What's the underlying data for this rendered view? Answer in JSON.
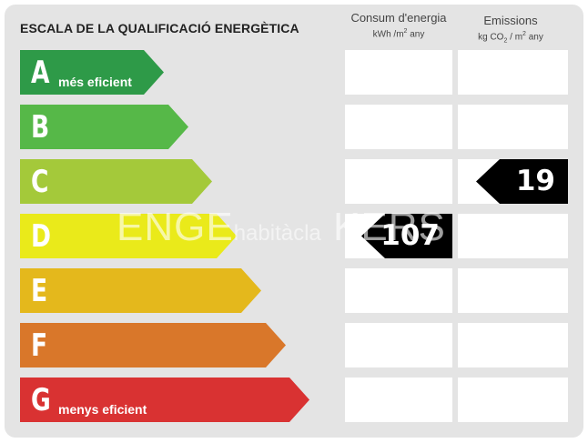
{
  "title": "ESCALA DE LA QUALIFICACIÓ ENERGÈTICA",
  "columns": {
    "consumption": {
      "label": "Consum d'energia",
      "unit_pre": "kWh /m",
      "unit_sup": "2",
      "unit_post": " any"
    },
    "emissions": {
      "label": "Emissions",
      "unit_pre": "kg CO",
      "unit_sub": "2",
      "unit_mid": " / m",
      "unit_sup": "2",
      "unit_post": " any"
    }
  },
  "ratings": [
    {
      "letter": "A",
      "note": "més eficient",
      "color": "#2e9a48"
    },
    {
      "letter": "B",
      "note": "",
      "color": "#56b848"
    },
    {
      "letter": "C",
      "note": "",
      "color": "#a4c93a"
    },
    {
      "letter": "D",
      "note": "",
      "color": "#eaea1a"
    },
    {
      "letter": "E",
      "note": "",
      "color": "#e4b81c"
    },
    {
      "letter": "F",
      "note": "",
      "color": "#d9772a"
    },
    {
      "letter": "G",
      "note": "menys eficient",
      "color": "#d93232"
    }
  ],
  "consumption_badge": {
    "value": "107",
    "rating": "D"
  },
  "emissions_badge": {
    "value": "19",
    "rating": "C"
  },
  "watermark": {
    "left": "ENGE",
    "middle": "habitàcla",
    "right": "KERS"
  }
}
